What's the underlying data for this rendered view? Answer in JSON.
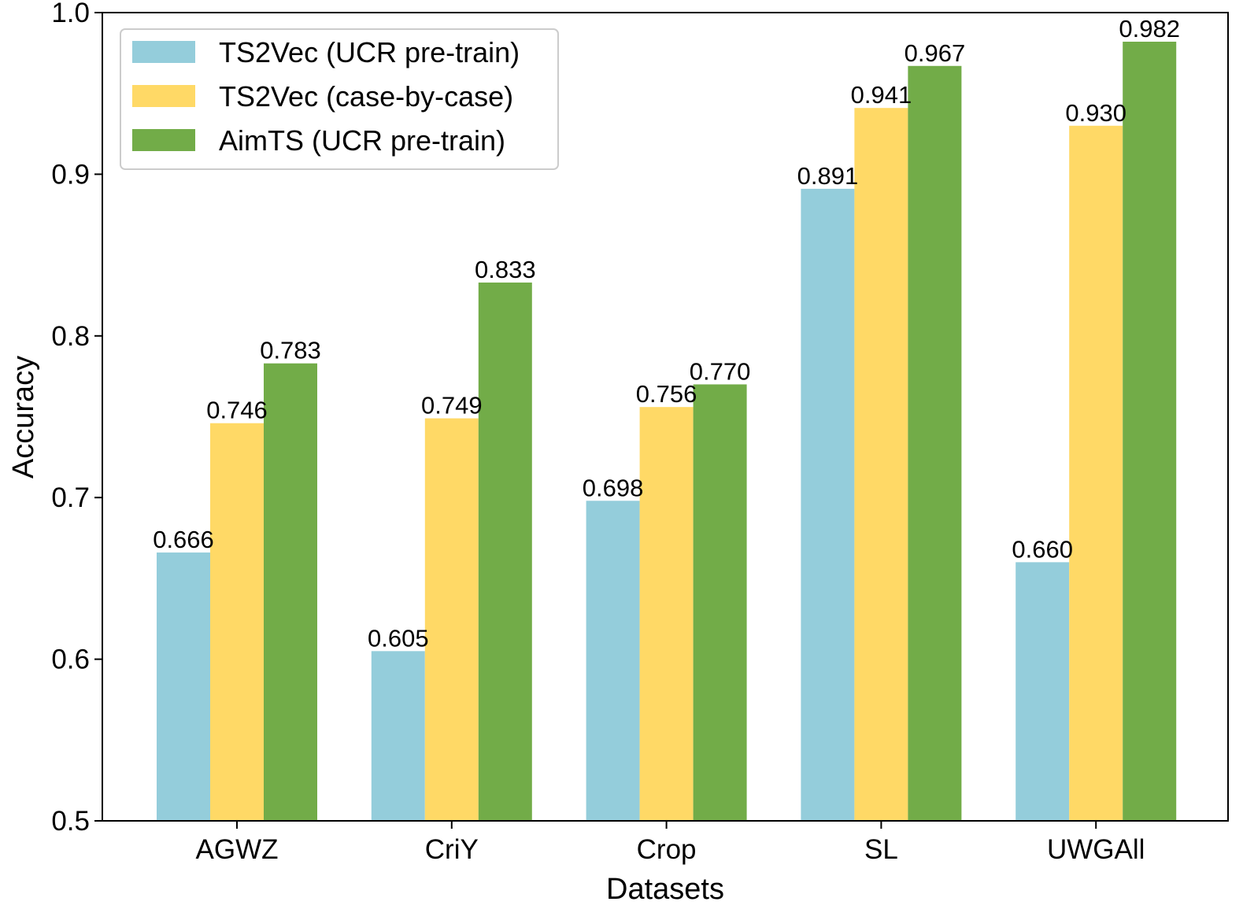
{
  "chart_data": {
    "type": "bar",
    "title": "",
    "xlabel": "Datasets",
    "ylabel": "Accuracy",
    "ylim": [
      0.5,
      1.0
    ],
    "yticks": [
      "0.5",
      "0.6",
      "0.7",
      "0.8",
      "0.9",
      "1.0"
    ],
    "grid": false,
    "legend_position": "top-left",
    "categories": [
      "AGWZ",
      "CriY",
      "Crop",
      "SL",
      "UWGAll"
    ],
    "series": [
      {
        "name": "TS2Vec (UCR pre-train)",
        "color": "#94CDDB",
        "values": [
          0.666,
          0.605,
          0.698,
          0.891,
          0.66
        ],
        "labels": [
          "0.666",
          "0.605",
          "0.698",
          "0.891",
          "0.660"
        ]
      },
      {
        "name": "TS2Vec (case-by-case)",
        "color": "#FFD966",
        "values": [
          0.746,
          0.749,
          0.756,
          0.941,
          0.93
        ],
        "labels": [
          "0.746",
          "0.749",
          "0.756",
          "0.941",
          "0.930"
        ]
      },
      {
        "name": "AimTS (UCR pre-train)",
        "color": "#72AC48",
        "values": [
          0.783,
          0.833,
          0.77,
          0.967,
          0.982
        ],
        "labels": [
          "0.783",
          "0.833",
          "0.770",
          "0.967",
          "0.982"
        ]
      }
    ]
  }
}
